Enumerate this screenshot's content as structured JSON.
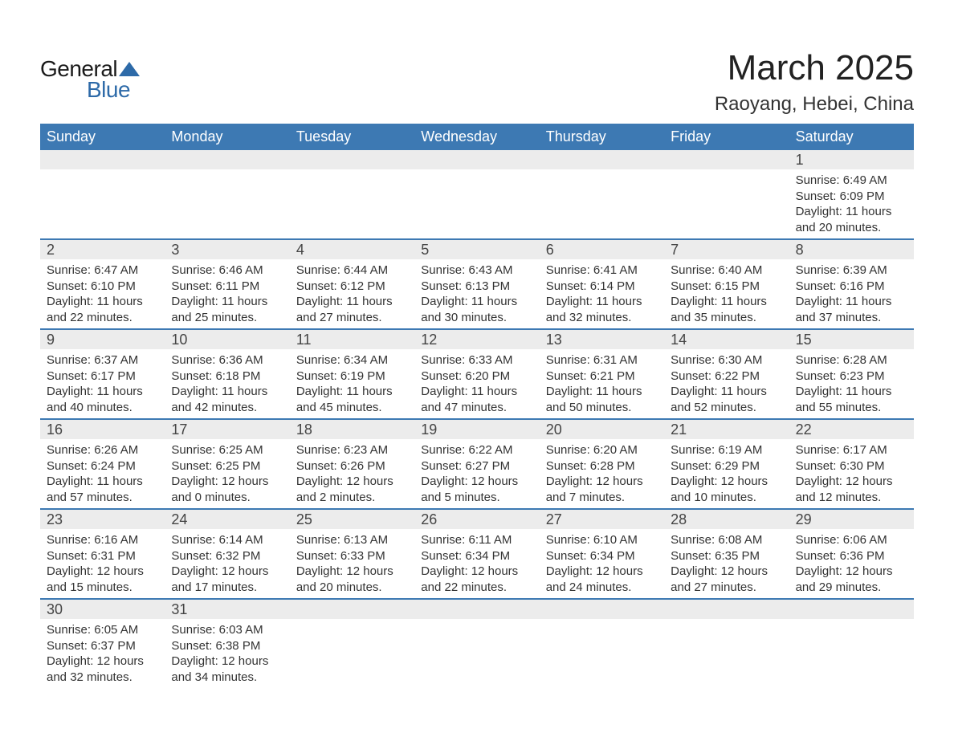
{
  "logo": {
    "text1": "General",
    "text2": "Blue",
    "triangle_color": "#2d6aa8"
  },
  "header": {
    "title": "March 2025",
    "subtitle": "Raoyang, Hebei, China"
  },
  "colors": {
    "header_bg": "#3d79b3",
    "header_fg": "#ffffff",
    "daynum_bg": "#ececec",
    "row_border": "#3d79b3",
    "text": "#333333"
  },
  "day_names": [
    "Sunday",
    "Monday",
    "Tuesday",
    "Wednesday",
    "Thursday",
    "Friday",
    "Saturday"
  ],
  "weeks": [
    [
      {},
      {},
      {},
      {},
      {},
      {},
      {
        "day": "1",
        "sunrise": "Sunrise: 6:49 AM",
        "sunset": "Sunset: 6:09 PM",
        "daylight1": "Daylight: 11 hours",
        "daylight2": "and 20 minutes."
      }
    ],
    [
      {
        "day": "2",
        "sunrise": "Sunrise: 6:47 AM",
        "sunset": "Sunset: 6:10 PM",
        "daylight1": "Daylight: 11 hours",
        "daylight2": "and 22 minutes."
      },
      {
        "day": "3",
        "sunrise": "Sunrise: 6:46 AM",
        "sunset": "Sunset: 6:11 PM",
        "daylight1": "Daylight: 11 hours",
        "daylight2": "and 25 minutes."
      },
      {
        "day": "4",
        "sunrise": "Sunrise: 6:44 AM",
        "sunset": "Sunset: 6:12 PM",
        "daylight1": "Daylight: 11 hours",
        "daylight2": "and 27 minutes."
      },
      {
        "day": "5",
        "sunrise": "Sunrise: 6:43 AM",
        "sunset": "Sunset: 6:13 PM",
        "daylight1": "Daylight: 11 hours",
        "daylight2": "and 30 minutes."
      },
      {
        "day": "6",
        "sunrise": "Sunrise: 6:41 AM",
        "sunset": "Sunset: 6:14 PM",
        "daylight1": "Daylight: 11 hours",
        "daylight2": "and 32 minutes."
      },
      {
        "day": "7",
        "sunrise": "Sunrise: 6:40 AM",
        "sunset": "Sunset: 6:15 PM",
        "daylight1": "Daylight: 11 hours",
        "daylight2": "and 35 minutes."
      },
      {
        "day": "8",
        "sunrise": "Sunrise: 6:39 AM",
        "sunset": "Sunset: 6:16 PM",
        "daylight1": "Daylight: 11 hours",
        "daylight2": "and 37 minutes."
      }
    ],
    [
      {
        "day": "9",
        "sunrise": "Sunrise: 6:37 AM",
        "sunset": "Sunset: 6:17 PM",
        "daylight1": "Daylight: 11 hours",
        "daylight2": "and 40 minutes."
      },
      {
        "day": "10",
        "sunrise": "Sunrise: 6:36 AM",
        "sunset": "Sunset: 6:18 PM",
        "daylight1": "Daylight: 11 hours",
        "daylight2": "and 42 minutes."
      },
      {
        "day": "11",
        "sunrise": "Sunrise: 6:34 AM",
        "sunset": "Sunset: 6:19 PM",
        "daylight1": "Daylight: 11 hours",
        "daylight2": "and 45 minutes."
      },
      {
        "day": "12",
        "sunrise": "Sunrise: 6:33 AM",
        "sunset": "Sunset: 6:20 PM",
        "daylight1": "Daylight: 11 hours",
        "daylight2": "and 47 minutes."
      },
      {
        "day": "13",
        "sunrise": "Sunrise: 6:31 AM",
        "sunset": "Sunset: 6:21 PM",
        "daylight1": "Daylight: 11 hours",
        "daylight2": "and 50 minutes."
      },
      {
        "day": "14",
        "sunrise": "Sunrise: 6:30 AM",
        "sunset": "Sunset: 6:22 PM",
        "daylight1": "Daylight: 11 hours",
        "daylight2": "and 52 minutes."
      },
      {
        "day": "15",
        "sunrise": "Sunrise: 6:28 AM",
        "sunset": "Sunset: 6:23 PM",
        "daylight1": "Daylight: 11 hours",
        "daylight2": "and 55 minutes."
      }
    ],
    [
      {
        "day": "16",
        "sunrise": "Sunrise: 6:26 AM",
        "sunset": "Sunset: 6:24 PM",
        "daylight1": "Daylight: 11 hours",
        "daylight2": "and 57 minutes."
      },
      {
        "day": "17",
        "sunrise": "Sunrise: 6:25 AM",
        "sunset": "Sunset: 6:25 PM",
        "daylight1": "Daylight: 12 hours",
        "daylight2": "and 0 minutes."
      },
      {
        "day": "18",
        "sunrise": "Sunrise: 6:23 AM",
        "sunset": "Sunset: 6:26 PM",
        "daylight1": "Daylight: 12 hours",
        "daylight2": "and 2 minutes."
      },
      {
        "day": "19",
        "sunrise": "Sunrise: 6:22 AM",
        "sunset": "Sunset: 6:27 PM",
        "daylight1": "Daylight: 12 hours",
        "daylight2": "and 5 minutes."
      },
      {
        "day": "20",
        "sunrise": "Sunrise: 6:20 AM",
        "sunset": "Sunset: 6:28 PM",
        "daylight1": "Daylight: 12 hours",
        "daylight2": "and 7 minutes."
      },
      {
        "day": "21",
        "sunrise": "Sunrise: 6:19 AM",
        "sunset": "Sunset: 6:29 PM",
        "daylight1": "Daylight: 12 hours",
        "daylight2": "and 10 minutes."
      },
      {
        "day": "22",
        "sunrise": "Sunrise: 6:17 AM",
        "sunset": "Sunset: 6:30 PM",
        "daylight1": "Daylight: 12 hours",
        "daylight2": "and 12 minutes."
      }
    ],
    [
      {
        "day": "23",
        "sunrise": "Sunrise: 6:16 AM",
        "sunset": "Sunset: 6:31 PM",
        "daylight1": "Daylight: 12 hours",
        "daylight2": "and 15 minutes."
      },
      {
        "day": "24",
        "sunrise": "Sunrise: 6:14 AM",
        "sunset": "Sunset: 6:32 PM",
        "daylight1": "Daylight: 12 hours",
        "daylight2": "and 17 minutes."
      },
      {
        "day": "25",
        "sunrise": "Sunrise: 6:13 AM",
        "sunset": "Sunset: 6:33 PM",
        "daylight1": "Daylight: 12 hours",
        "daylight2": "and 20 minutes."
      },
      {
        "day": "26",
        "sunrise": "Sunrise: 6:11 AM",
        "sunset": "Sunset: 6:34 PM",
        "daylight1": "Daylight: 12 hours",
        "daylight2": "and 22 minutes."
      },
      {
        "day": "27",
        "sunrise": "Sunrise: 6:10 AM",
        "sunset": "Sunset: 6:34 PM",
        "daylight1": "Daylight: 12 hours",
        "daylight2": "and 24 minutes."
      },
      {
        "day": "28",
        "sunrise": "Sunrise: 6:08 AM",
        "sunset": "Sunset: 6:35 PM",
        "daylight1": "Daylight: 12 hours",
        "daylight2": "and 27 minutes."
      },
      {
        "day": "29",
        "sunrise": "Sunrise: 6:06 AM",
        "sunset": "Sunset: 6:36 PM",
        "daylight1": "Daylight: 12 hours",
        "daylight2": "and 29 minutes."
      }
    ],
    [
      {
        "day": "30",
        "sunrise": "Sunrise: 6:05 AM",
        "sunset": "Sunset: 6:37 PM",
        "daylight1": "Daylight: 12 hours",
        "daylight2": "and 32 minutes."
      },
      {
        "day": "31",
        "sunrise": "Sunrise: 6:03 AM",
        "sunset": "Sunset: 6:38 PM",
        "daylight1": "Daylight: 12 hours",
        "daylight2": "and 34 minutes."
      },
      {},
      {},
      {},
      {},
      {}
    ]
  ]
}
